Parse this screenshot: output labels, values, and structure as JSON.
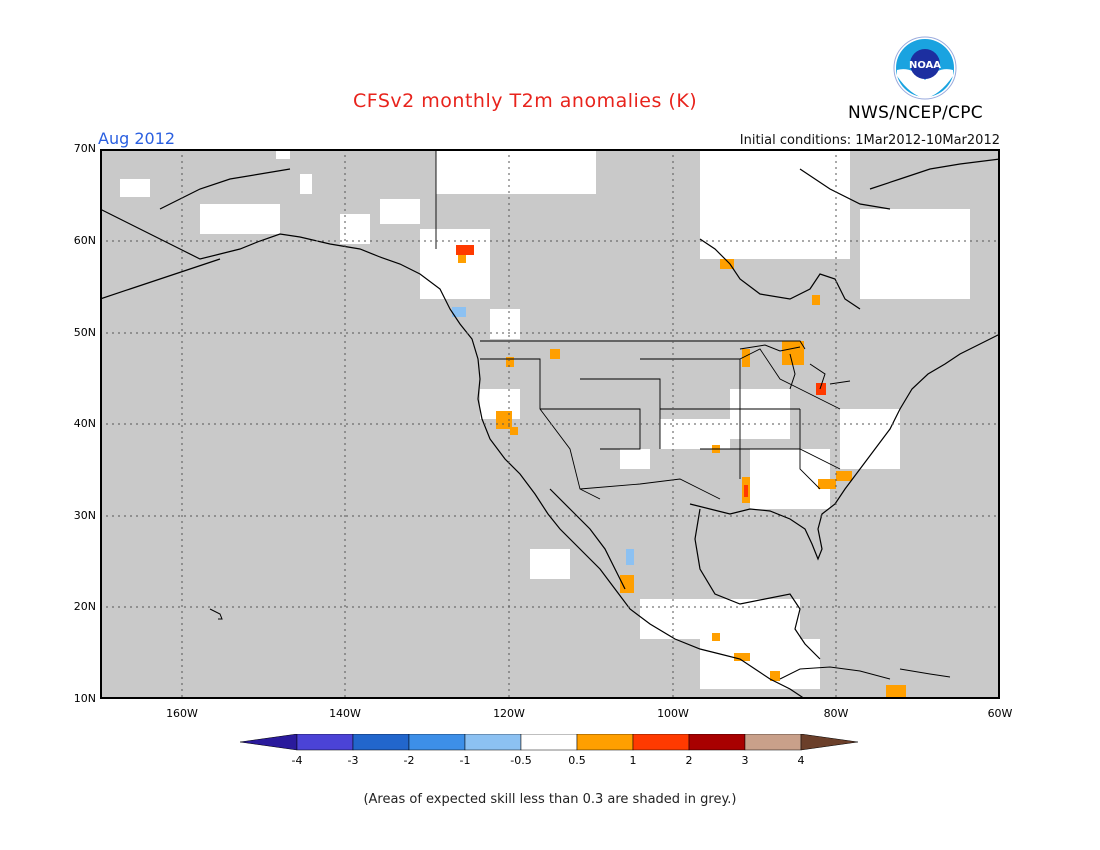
{
  "title": "CFSv2 monthly T2m anomalies (K)",
  "month_label": "Aug 2012",
  "initial_conditions": "Initial conditions: 1Mar2012-10Mar2012",
  "org": "NWS/NCEP/CPC",
  "logo_text": "NOAA",
  "lat_labels": [
    "70N",
    "60N",
    "50N",
    "40N",
    "30N",
    "20N",
    "10N"
  ],
  "lon_labels": [
    "160W",
    "140W",
    "120W",
    "100W",
    "80W",
    "60W"
  ],
  "colorbar": {
    "labels": [
      "-4",
      "-3",
      "-2",
      "-1",
      "-0.5",
      "0.5",
      "1",
      "2",
      "3",
      "4"
    ],
    "colors": [
      "#2a1a9c",
      "#4b43d6",
      "#2266cc",
      "#3d8fe8",
      "#8cc1f2",
      "#ffffff",
      "#ff9f00",
      "#ff3a00",
      "#a80000",
      "#c9a08a",
      "#6b3f2a"
    ]
  },
  "note": "(Areas of expected skill less than 0.3 are shaded in grey.)",
  "colors": {
    "grey": "#c9c9c9",
    "title": "#e8231c",
    "month": "#2a5fe0"
  }
}
